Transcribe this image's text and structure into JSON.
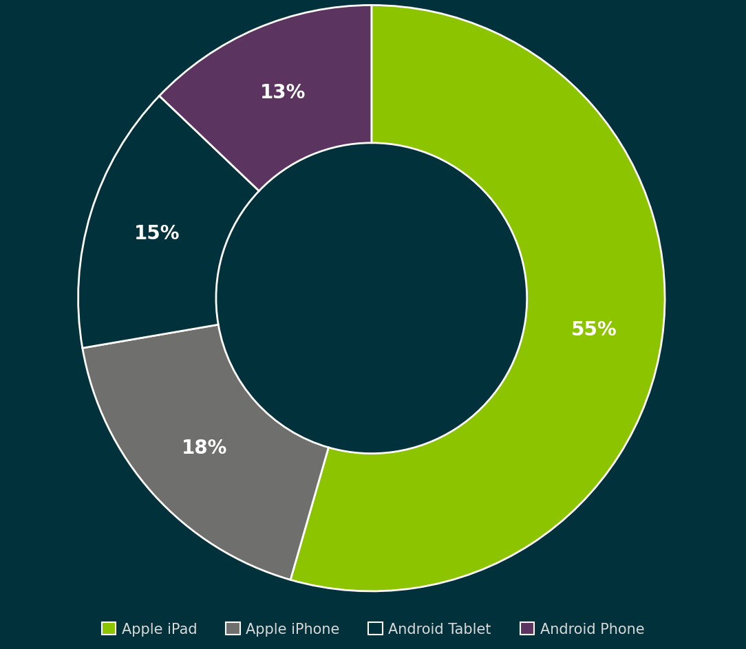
{
  "chart_data": {
    "type": "pie",
    "categories": [
      "Apple iPad",
      "Apple iPhone",
      "Android Tablet",
      "Android Phone"
    ],
    "values": [
      55,
      18,
      15,
      13
    ],
    "value_labels": [
      "55%",
      "18%",
      "15%",
      "13%"
    ],
    "colors": [
      "#8dc400",
      "#6f6f6d",
      "#01313a",
      "#5b3460"
    ],
    "data_labels": true,
    "legend": "bottom"
  }
}
